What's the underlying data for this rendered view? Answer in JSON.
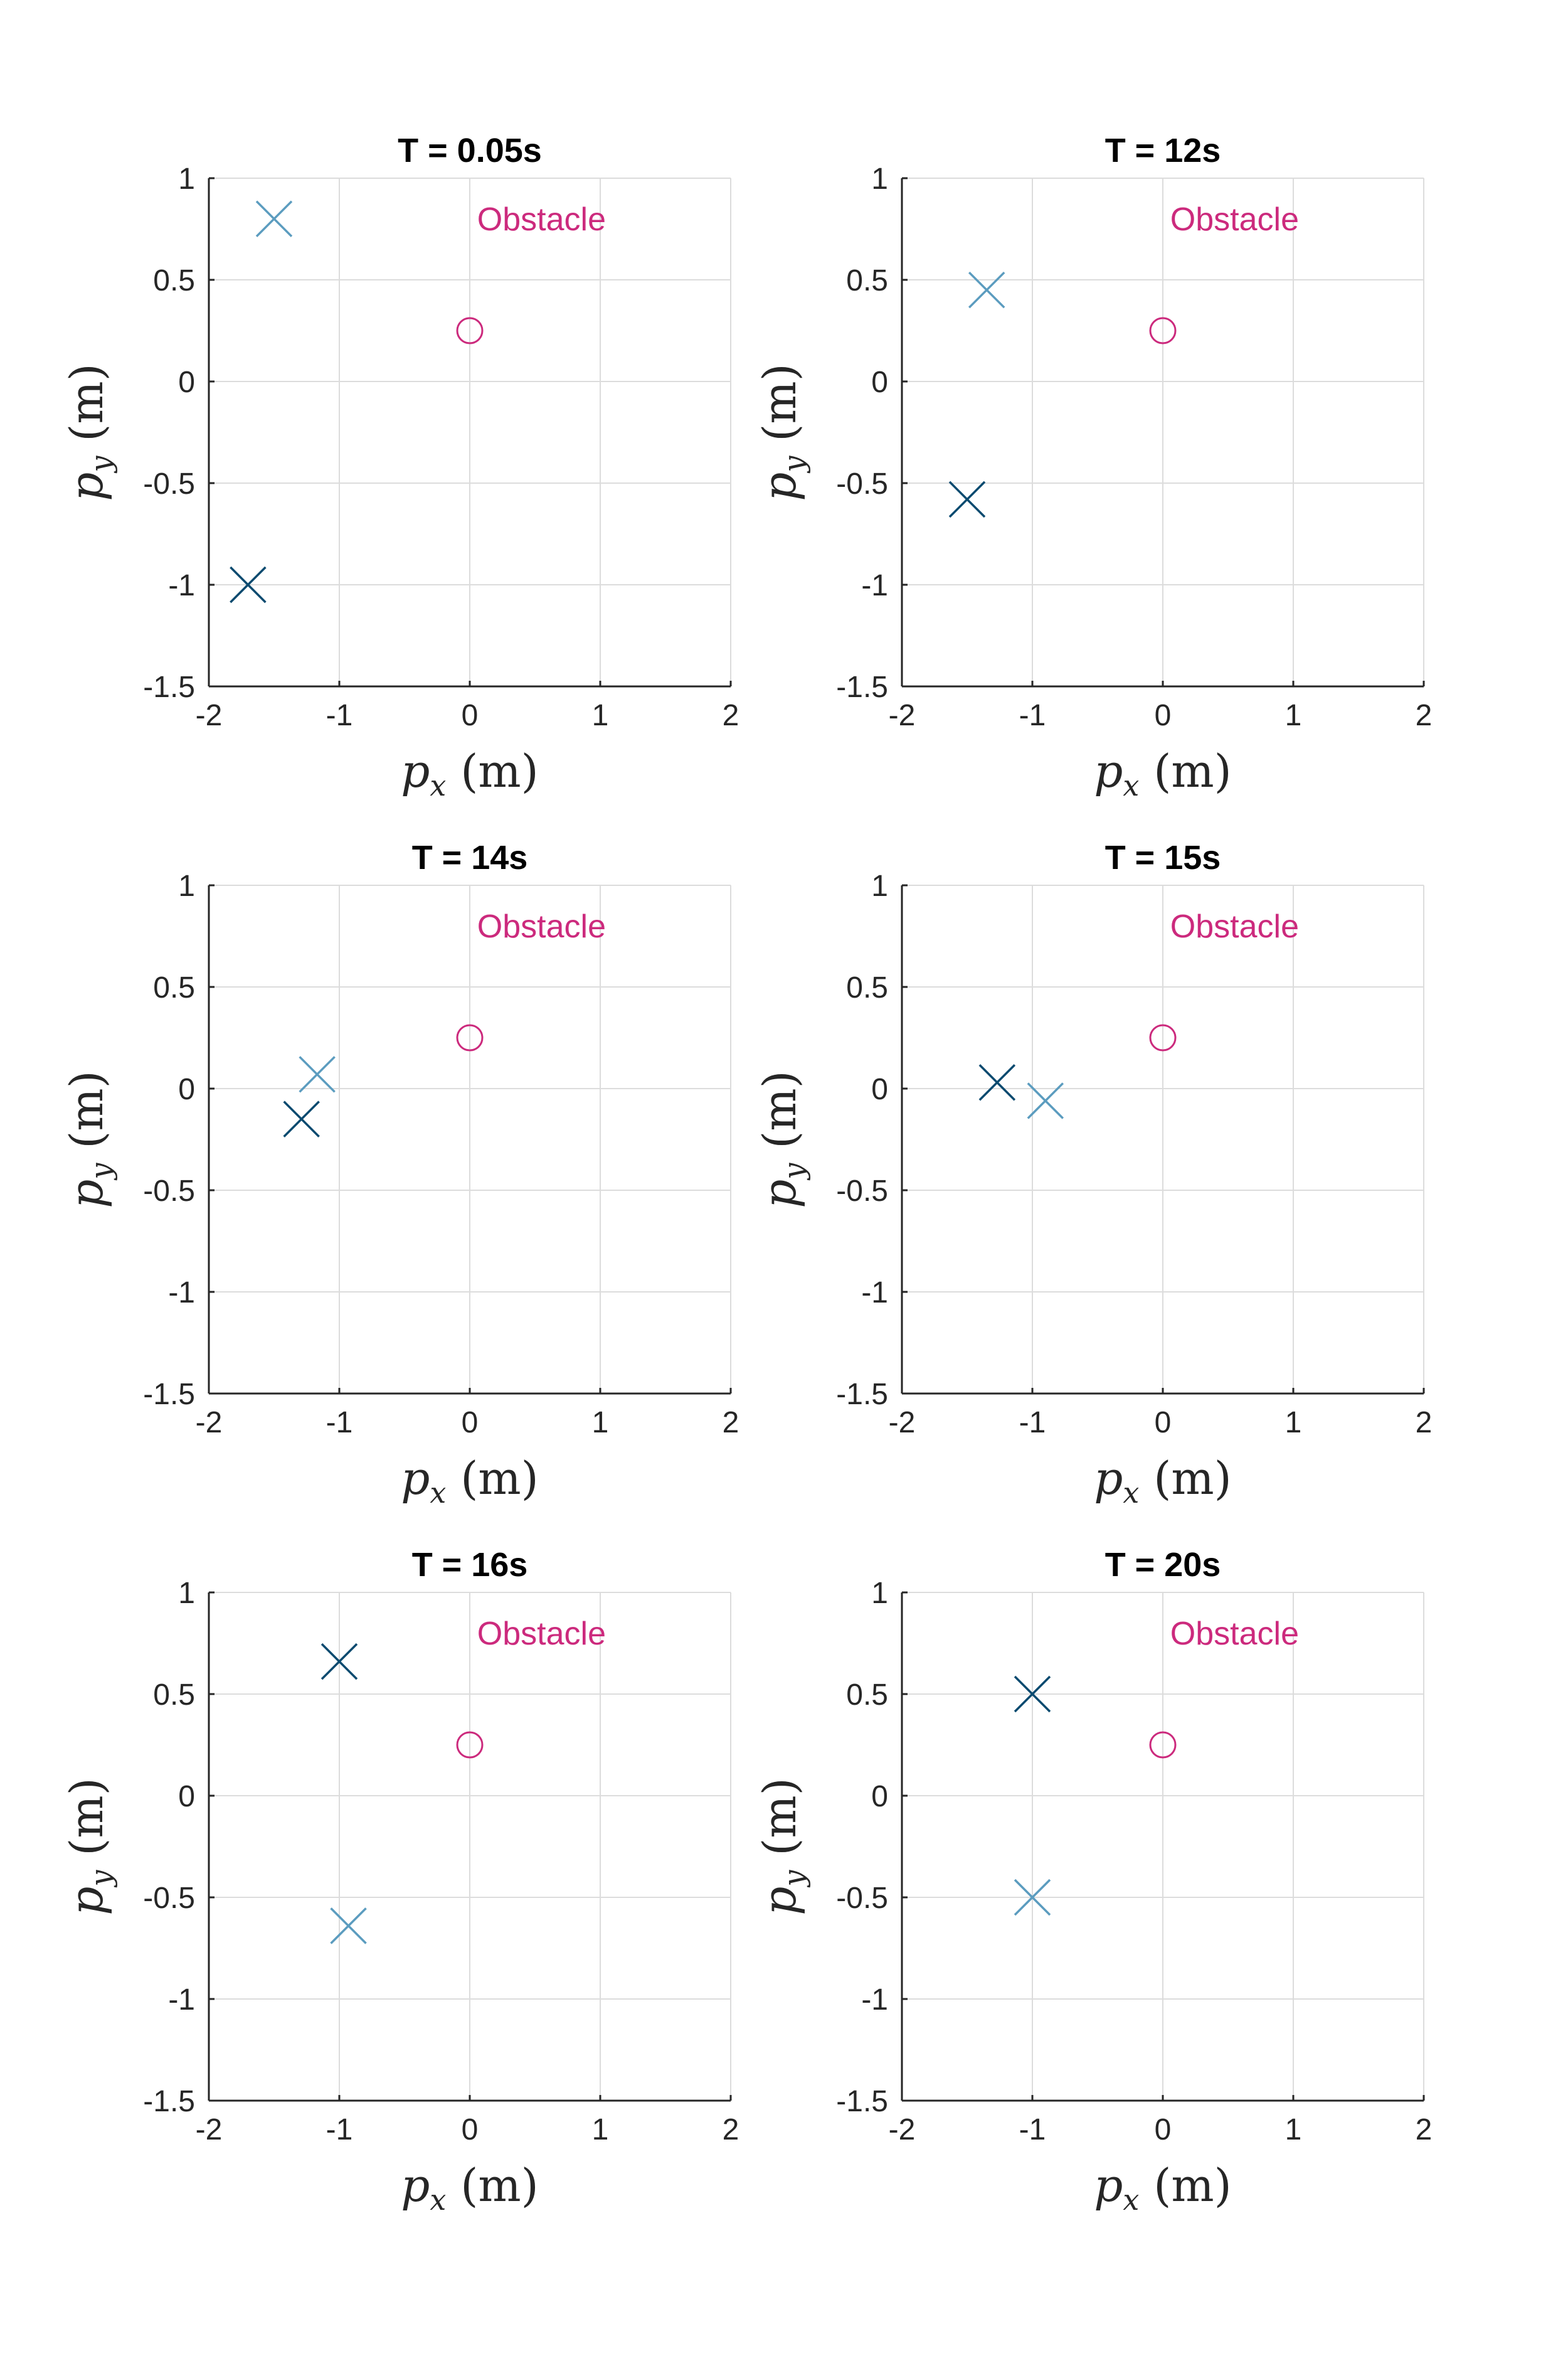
{
  "chart_data": [
    {
      "type": "scatter",
      "title": "T = 0.05s",
      "xlabel": "p_x (m)",
      "ylabel": "p_y (m)",
      "xlim": [
        -2,
        2
      ],
      "ylim": [
        -1.5,
        1
      ],
      "xticks": [
        "-2",
        "-1",
        "0",
        "1",
        "2"
      ],
      "yticks": [
        "1",
        "0.5",
        "0",
        "-0.5",
        "-1",
        "-1.5"
      ],
      "grid": true,
      "points": [
        {
          "x": -1.5,
          "y": 0.8,
          "marker": "x",
          "color": "#5b9cbf"
        },
        {
          "x": -1.7,
          "y": -1.0,
          "marker": "x",
          "color": "#0b4a6f"
        }
      ],
      "obstacle": {
        "x": 0,
        "y": 0.25,
        "label": "Obstacle",
        "label_x": 0.55,
        "label_y": 0.8,
        "color": "#cc2a7d"
      }
    },
    {
      "type": "scatter",
      "title": "T = 12s",
      "xlabel": "p_x (m)",
      "ylabel": "p_y (m)",
      "xlim": [
        -2,
        2
      ],
      "ylim": [
        -1.5,
        1
      ],
      "xticks": [
        "-2",
        "-1",
        "0",
        "1",
        "2"
      ],
      "yticks": [
        "1",
        "0.5",
        "0",
        "-0.5",
        "-1",
        "-1.5"
      ],
      "grid": true,
      "points": [
        {
          "x": -1.35,
          "y": 0.45,
          "marker": "x",
          "color": "#5b9cbf"
        },
        {
          "x": -1.5,
          "y": -0.58,
          "marker": "x",
          "color": "#0b4a6f"
        }
      ],
      "obstacle": {
        "x": 0,
        "y": 0.25,
        "label": "Obstacle",
        "label_x": 0.55,
        "label_y": 0.8,
        "color": "#cc2a7d"
      }
    },
    {
      "type": "scatter",
      "title": "T = 14s",
      "xlabel": "p_x (m)",
      "ylabel": "p_y (m)",
      "xlim": [
        -2,
        2
      ],
      "ylim": [
        -1.5,
        1
      ],
      "xticks": [
        "-2",
        "-1",
        "0",
        "1",
        "2"
      ],
      "yticks": [
        "1",
        "0.5",
        "0",
        "-0.5",
        "-1",
        "-1.5"
      ],
      "grid": true,
      "points": [
        {
          "x": -1.17,
          "y": 0.07,
          "marker": "x",
          "color": "#5b9cbf"
        },
        {
          "x": -1.29,
          "y": -0.15,
          "marker": "x",
          "color": "#0b4a6f"
        }
      ],
      "obstacle": {
        "x": 0,
        "y": 0.25,
        "label": "Obstacle",
        "label_x": 0.55,
        "label_y": 0.8,
        "color": "#cc2a7d"
      }
    },
    {
      "type": "scatter",
      "title": "T = 15s",
      "xlabel": "p_x (m)",
      "ylabel": "p_y (m)",
      "xlim": [
        -2,
        2
      ],
      "ylim": [
        -1.5,
        1
      ],
      "xticks": [
        "-2",
        "-1",
        "0",
        "1",
        "2"
      ],
      "yticks": [
        "1",
        "0.5",
        "0",
        "-0.5",
        "-1",
        "-1.5"
      ],
      "grid": true,
      "points": [
        {
          "x": -0.9,
          "y": -0.06,
          "marker": "x",
          "color": "#5b9cbf"
        },
        {
          "x": -1.27,
          "y": 0.03,
          "marker": "x",
          "color": "#0b4a6f"
        }
      ],
      "obstacle": {
        "x": 0,
        "y": 0.25,
        "label": "Obstacle",
        "label_x": 0.55,
        "label_y": 0.8,
        "color": "#cc2a7d"
      }
    },
    {
      "type": "scatter",
      "title": "T = 16s",
      "xlabel": "p_x (m)",
      "ylabel": "p_y (m)",
      "xlim": [
        -2,
        2
      ],
      "ylim": [
        -1.5,
        1
      ],
      "xticks": [
        "-2",
        "-1",
        "0",
        "1",
        "2"
      ],
      "yticks": [
        "1",
        "0.5",
        "0",
        "-0.5",
        "-1",
        "-1.5"
      ],
      "grid": true,
      "points": [
        {
          "x": -0.93,
          "y": -0.64,
          "marker": "x",
          "color": "#5b9cbf"
        },
        {
          "x": -1.0,
          "y": 0.66,
          "marker": "x",
          "color": "#0b4a6f"
        }
      ],
      "obstacle": {
        "x": 0,
        "y": 0.25,
        "label": "Obstacle",
        "label_x": 0.55,
        "label_y": 0.8,
        "color": "#cc2a7d"
      }
    },
    {
      "type": "scatter",
      "title": "T = 20s",
      "xlabel": "p_x (m)",
      "ylabel": "p_y (m)",
      "xlim": [
        -2,
        2
      ],
      "ylim": [
        -1.5,
        1
      ],
      "xticks": [
        "-2",
        "-1",
        "0",
        "1",
        "2"
      ],
      "yticks": [
        "1",
        "0.5",
        "0",
        "-0.5",
        "-1",
        "-1.5"
      ],
      "grid": true,
      "points": [
        {
          "x": -1.0,
          "y": -0.5,
          "marker": "x",
          "color": "#5b9cbf"
        },
        {
          "x": -1.0,
          "y": 0.5,
          "marker": "x",
          "color": "#0b4a6f"
        }
      ],
      "obstacle": {
        "x": 0,
        "y": 0.25,
        "label": "Obstacle",
        "label_x": 0.55,
        "label_y": 0.8,
        "color": "#cc2a7d"
      }
    }
  ]
}
